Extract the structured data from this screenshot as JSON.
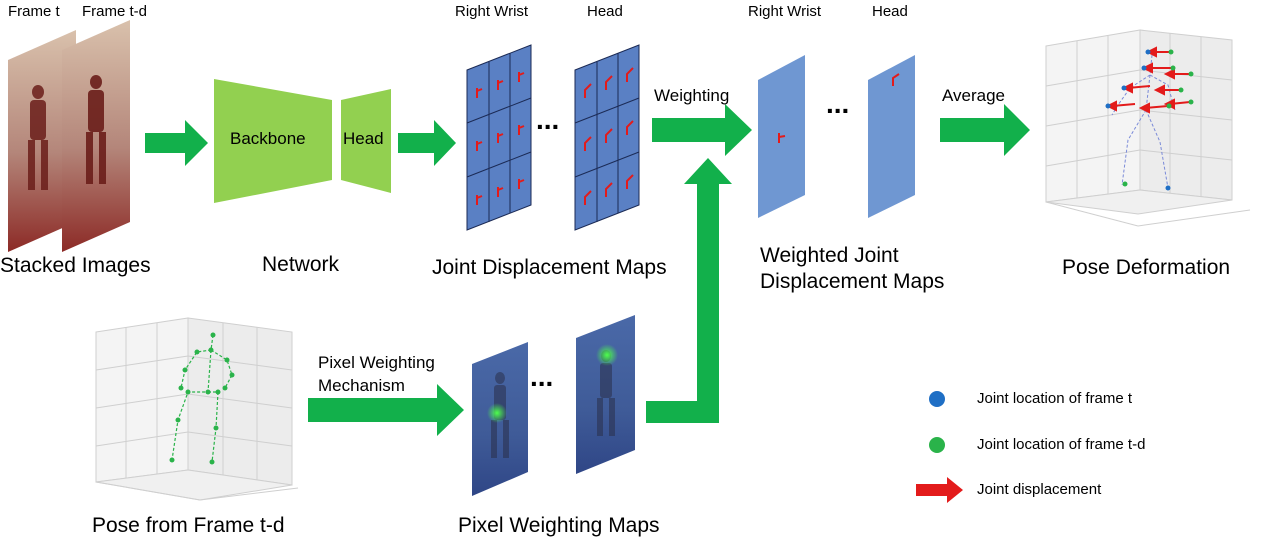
{
  "stacked": {
    "frame_t_label": "Frame t",
    "frame_td_label": "Frame t-d",
    "caption": "Stacked Images"
  },
  "network": {
    "backbone_label": "Backbone",
    "head_label": "Head",
    "caption": "Network"
  },
  "jdm": {
    "right_wrist_label": "Right Wrist",
    "head_label": "Head",
    "ellipsis": "...",
    "caption": "Joint Displacement Maps"
  },
  "weighting": {
    "label": "Weighting"
  },
  "wjdm": {
    "right_wrist_label": "Right Wrist",
    "head_label": "Head",
    "ellipsis": "...",
    "caption_line1": "Weighted Joint",
    "caption_line2": "Displacement Maps"
  },
  "average": {
    "label": "Average"
  },
  "pose_def": {
    "caption": "Pose Deformation"
  },
  "pose_td": {
    "caption": "Pose from Frame t-d"
  },
  "pwm_mech": {
    "label_line1": "Pixel Weighting",
    "label_line2": "Mechanism"
  },
  "pwm": {
    "ellipsis": "...",
    "caption": "Pixel Weighting Maps"
  },
  "legend": {
    "items": [
      {
        "label": "Joint location of frame t",
        "color": "#1f6fc5"
      },
      {
        "label": "Joint location of frame t-d",
        "color": "#2ab34a"
      },
      {
        "label": "Joint displacement",
        "color": "#e31b1b"
      }
    ]
  },
  "colors": {
    "arrow": "#12b04b",
    "network_block": "#92d050",
    "map_blue": "#5a80c4",
    "weighted_map": "#6f97d2",
    "grid_line": "#1b2a55",
    "mark_red": "#e31b1b"
  }
}
